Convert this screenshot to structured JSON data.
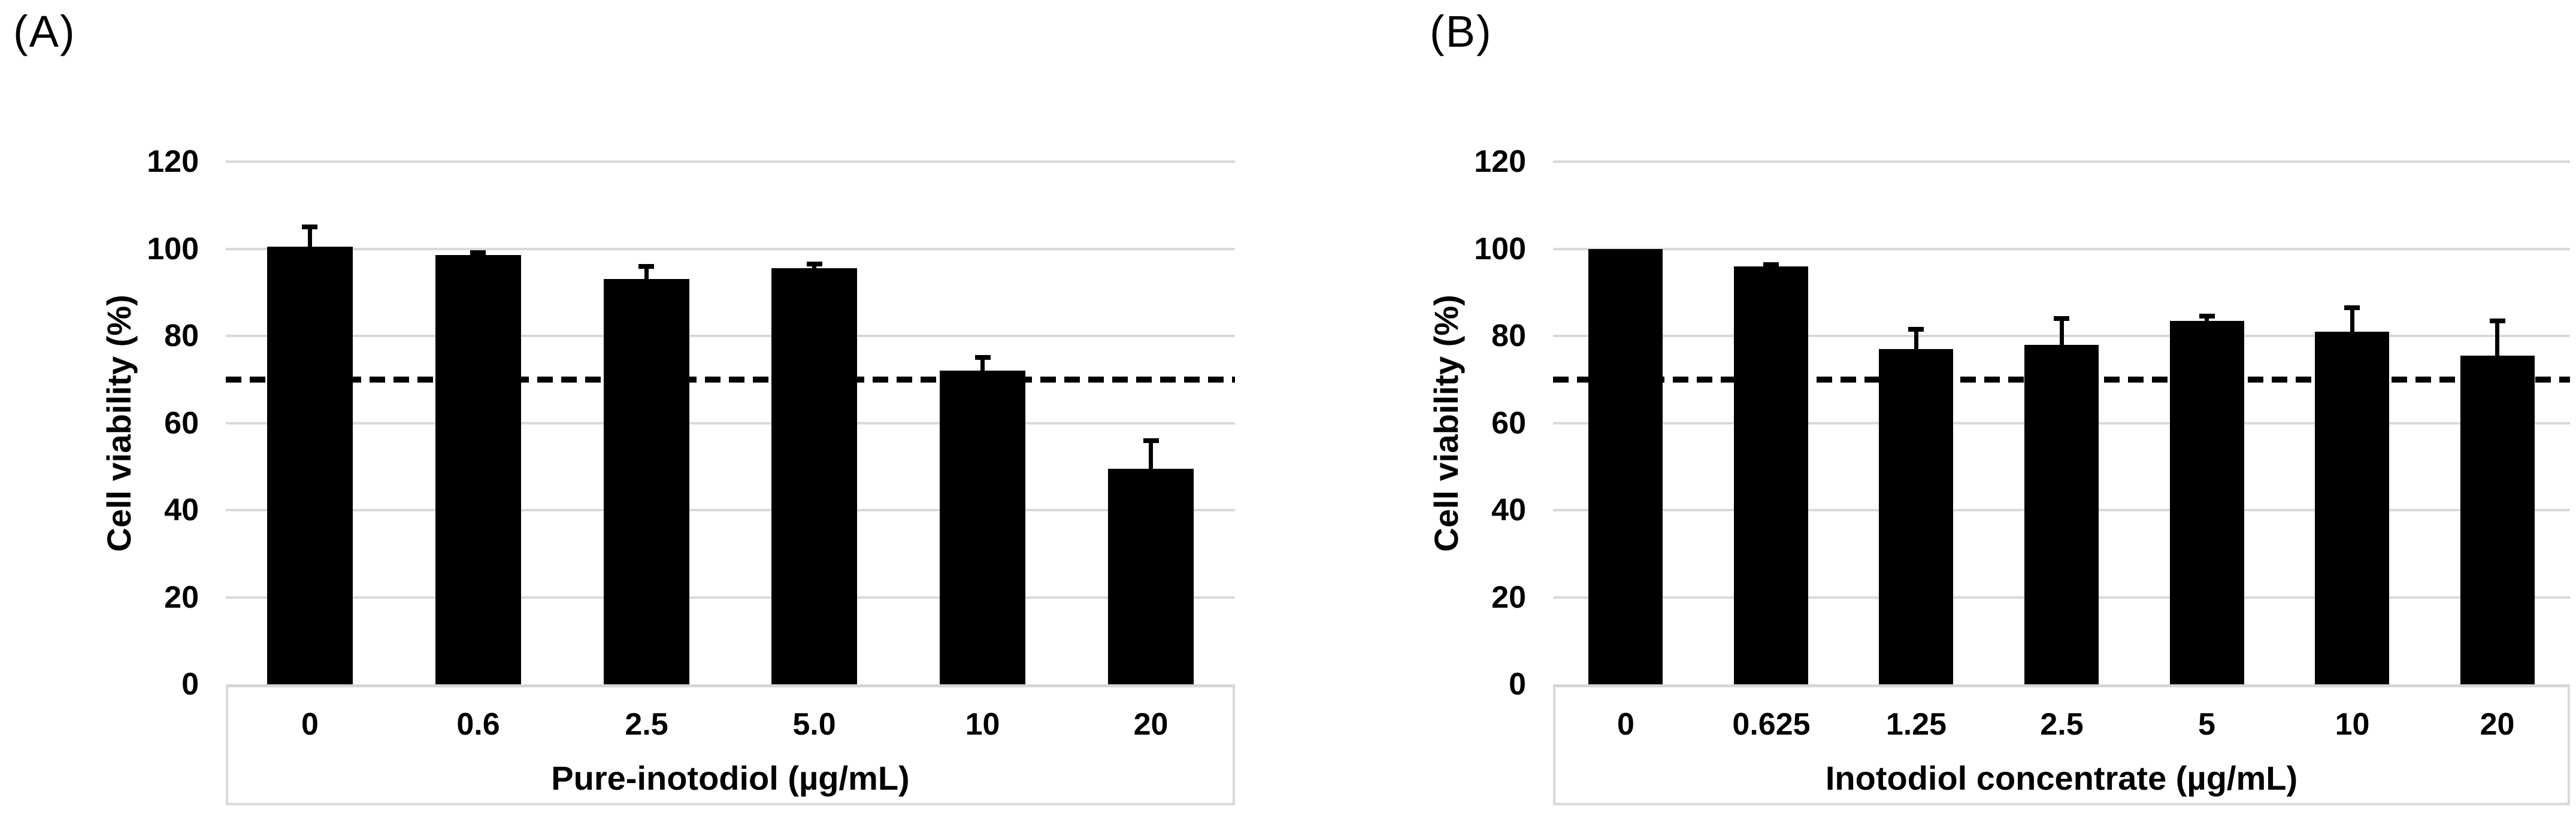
{
  "panels": [
    {
      "label": "(A)"
    },
    {
      "label": "(B)"
    }
  ],
  "chart_data": [
    {
      "type": "bar",
      "panel": "(A)",
      "categories": [
        "0",
        "0.6",
        "2.5",
        "5.0",
        "10",
        "20"
      ],
      "values": [
        100.5,
        98.5,
        93,
        95.5,
        72,
        49.5
      ],
      "errors_plus": [
        4.5,
        0.6,
        3,
        1,
        3,
        6.5
      ],
      "xlabel": "Pure-inotodiol (µg/mL)",
      "ylabel": "Cell viability (%)",
      "ylim": [
        0,
        120
      ],
      "yticks": [
        0,
        20,
        40,
        60,
        80,
        100,
        120
      ],
      "reference_line": {
        "value": 70,
        "style": "dashed",
        "color": "#000000"
      },
      "bar_color": "#000000",
      "gridline_color": "#d9d9d9",
      "grid": "horizontal",
      "legend": "none",
      "error_bars": "upper-only"
    },
    {
      "type": "bar",
      "panel": "(B)",
      "categories": [
        "0",
        "0.625",
        "1.25",
        "2.5",
        "5",
        "10",
        "20"
      ],
      "values": [
        100,
        96,
        77,
        78,
        83.5,
        81,
        75.5
      ],
      "errors_plus": [
        0,
        0.4,
        4.5,
        6,
        1,
        5.5,
        8
      ],
      "xlabel": "Inotodiol concentrate (µg/mL)",
      "ylabel": "Cell viability (%)",
      "ylim": [
        0,
        120
      ],
      "yticks": [
        0,
        20,
        40,
        60,
        80,
        100,
        120
      ],
      "reference_line": {
        "value": 70,
        "style": "dashed",
        "color": "#000000"
      },
      "bar_color": "#000000",
      "gridline_color": "#d9d9d9",
      "grid": "horizontal",
      "legend": "none",
      "error_bars": "upper-only"
    }
  ]
}
